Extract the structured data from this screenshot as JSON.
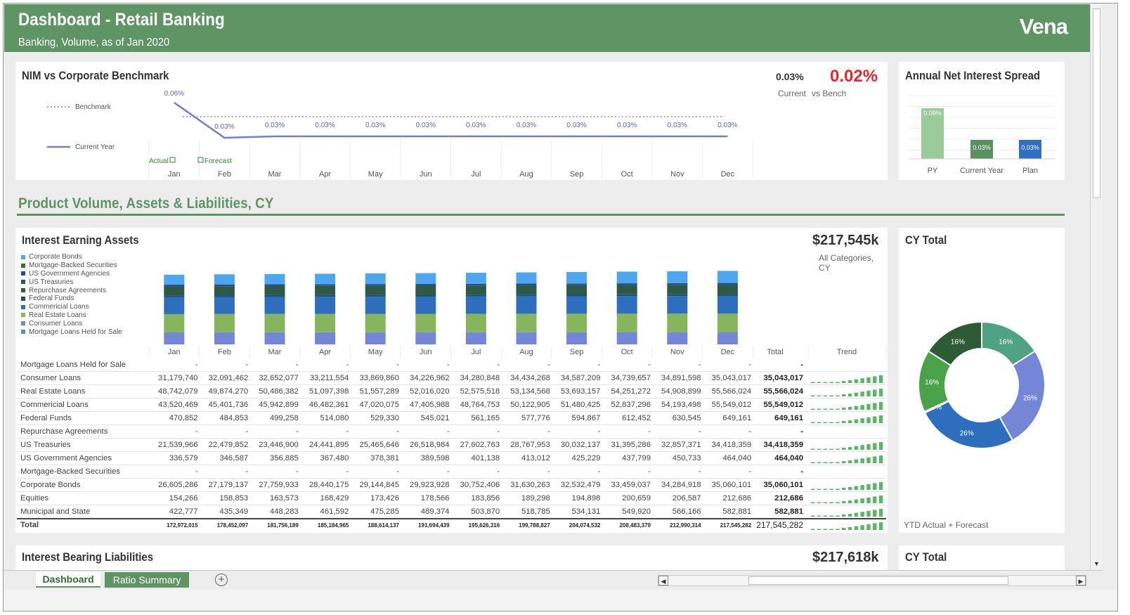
{
  "header": {
    "title": "Dashboard - Retail Banking",
    "subtitle": "Banking, Volume, as of Jan 2020",
    "logo": "Vena",
    "bg_color": "#5f9565"
  },
  "nim": {
    "title": "NIM vs Corporate Benchmark",
    "legend_benchmark": "Benchmark",
    "legend_current": "Current Year",
    "actual_label": "Actual",
    "forecast_label": "Forecast",
    "kpi_current": "0.03%",
    "kpi_vs_bench": "0.02%",
    "kpi_current_caption": "Current",
    "kpi_vs_bench_caption": "vs Bench"
  },
  "spread": {
    "title": "Annual Net Interest Spread"
  },
  "section_title": "Product Volume, Assets & Liabilities, CY",
  "assets": {
    "title": "Interest Earning Assets",
    "kpi_value": "$217,545k",
    "kpi_caption": "All Categories, CY",
    "total_header": "Total",
    "trend_header": "Trend",
    "rows": [
      {
        "label": "Mortgage Loans Held for Sale",
        "values": [
          "-",
          "-",
          "-",
          "-",
          "-",
          "-",
          "-",
          "-",
          "-",
          "-",
          "-",
          "-"
        ],
        "total": "-"
      },
      {
        "label": "Consumer Loans",
        "values": [
          "31,179,740",
          "32,091,462",
          "32,652,077",
          "33,211,554",
          "33,869,860",
          "34,226,962",
          "34,280,848",
          "34,434,268",
          "34,587,209",
          "34,739,657",
          "34,891,598",
          "35,043,017"
        ],
        "total": "35,043,017"
      },
      {
        "label": "Real Estate Loans",
        "values": [
          "48,742,079",
          "49,874,270",
          "50,486,382",
          "51,097,398",
          "51,557,289",
          "52,016,020",
          "52,575,518",
          "53,134,568",
          "53,693,157",
          "54,251,272",
          "54,908,899",
          "55,566,024"
        ],
        "total": "55,566,024"
      },
      {
        "label": "Commericial Loans",
        "values": [
          "43,520,469",
          "45,401,736",
          "45,942,899",
          "46,482,361",
          "47,020,075",
          "47,405,988",
          "48,764,753",
          "50,122,905",
          "51,480,425",
          "52,837,296",
          "54,193,498",
          "55,549,012"
        ],
        "total": "55,549,012"
      },
      {
        "label": "Federal Funds",
        "values": [
          "470,852",
          "484,853",
          "499,258",
          "514,080",
          "529,330",
          "545,021",
          "561,165",
          "577,776",
          "594,867",
          "612,452",
          "630,545",
          "649,161"
        ],
        "total": "649,161"
      },
      {
        "label": "Repurchase Agreements",
        "values": [
          "-",
          "-",
          "-",
          "-",
          "-",
          "-",
          "-",
          "-",
          "-",
          "-",
          "-",
          "-"
        ],
        "total": "-"
      },
      {
        "label": "US Treasuries",
        "values": [
          "21,539,966",
          "22,479,852",
          "23,446,900",
          "24,441,895",
          "25,465,646",
          "26,518,984",
          "27,602,763",
          "28,767,953",
          "30,032,137",
          "31,395,286",
          "32,857,371",
          "34,418,359"
        ],
        "total": "34,418,359"
      },
      {
        "label": "US Government Agencies",
        "values": [
          "336,579",
          "346,587",
          "356,885",
          "367,480",
          "378,381",
          "389,598",
          "401,138",
          "413,012",
          "425,229",
          "437,799",
          "450,733",
          "464,040"
        ],
        "total": "464,040"
      },
      {
        "label": "Mortgage-Backed Securities",
        "values": [
          "-",
          "-",
          "-",
          "-",
          "-",
          "-",
          "-",
          "-",
          "-",
          "-",
          "-",
          "-"
        ],
        "total": "-"
      },
      {
        "label": "Corporate Bonds",
        "values": [
          "26,605,286",
          "27,179,137",
          "27,759,933",
          "28,440,175",
          "29,144,845",
          "29,923,928",
          "30,752,406",
          "31,630,263",
          "32,532,479",
          "33,459,037",
          "34,284,918",
          "35,060,101"
        ],
        "total": "35,060,101"
      },
      {
        "label": "Equities",
        "values": [
          "154,266",
          "158,853",
          "163,573",
          "168,429",
          "173,426",
          "178,566",
          "183,856",
          "189,298",
          "194,898",
          "200,659",
          "206,587",
          "212,686"
        ],
        "total": "212,686"
      },
      {
        "label": "Municipal and State",
        "values": [
          "422,777",
          "435,349",
          "448,283",
          "461,592",
          "475,285",
          "489,374",
          "503,870",
          "518,785",
          "534,131",
          "549,920",
          "566,166",
          "582,881"
        ],
        "total": "582,881"
      }
    ],
    "total_row": {
      "label": "Total",
      "values": [
        "172,972,015",
        "178,452,097",
        "181,756,189",
        "185,184,965",
        "188,614,137",
        "191,694,439",
        "195,626,316",
        "199,788,827",
        "204,074,532",
        "208,483,379",
        "212,990,314",
        "217,545,282"
      ],
      "total": "217,545,282"
    }
  },
  "cy_total": {
    "title": "CY Total",
    "caption": "YTD Actual + Forecast"
  },
  "liabilities": {
    "title": "Interest Bearing Liabilities",
    "kpi_value": "$217,618k",
    "cy_title": "CY Total"
  },
  "tabs": {
    "active": "Dashboard",
    "second": "Ratio Summary"
  },
  "chart_data": [
    {
      "type": "line",
      "title": "NIM vs Corporate Benchmark",
      "categories": [
        "Jan",
        "Feb",
        "Mar",
        "Apr",
        "May",
        "Jun",
        "Jul",
        "Aug",
        "Sep",
        "Oct",
        "Nov",
        "Dec"
      ],
      "series": [
        {
          "name": "Current Year",
          "values": [
            0.06,
            0.03,
            0.03,
            0.03,
            0.03,
            0.03,
            0.03,
            0.03,
            0.03,
            0.03,
            0.03,
            0.03
          ],
          "labels": [
            "0.06%",
            "0.03%",
            "0.03%",
            "0.03%",
            "0.03%",
            "0.03%",
            "0.03%",
            "0.03%",
            "0.03%",
            "0.03%",
            "0.03%",
            "0.03%"
          ],
          "color": "#6f7fcc"
        },
        {
          "name": "Benchmark",
          "values": [
            0.05,
            0.05,
            0.05,
            0.05,
            0.05,
            0.05,
            0.05,
            0.05,
            0.05,
            0.05,
            0.05,
            0.05
          ],
          "color": "#aaaaaa"
        }
      ],
      "ylim": [
        0,
        0.07
      ]
    },
    {
      "type": "bar",
      "title": "Annual Net Interest Spread",
      "categories": [
        "PY",
        "Current Year",
        "Plan"
      ],
      "values": [
        0.09,
        0.03,
        0.03
      ],
      "labels": [
        "0.09%",
        "0.03%",
        "0.03%"
      ],
      "colors": [
        "#9ccb9b",
        "#5b8f5f",
        "#2f6fbf"
      ],
      "ylim": [
        0,
        0.11
      ]
    },
    {
      "type": "bar",
      "stacked": true,
      "title": "Interest Earning Assets",
      "categories": [
        "Jan",
        "Feb",
        "Mar",
        "Apr",
        "May",
        "Jun",
        "Jul",
        "Aug",
        "Sep",
        "Oct",
        "Nov",
        "Dec"
      ],
      "series": [
        {
          "name": "Corporate Bonds",
          "color": "#4da6ee",
          "values": [
            26.61,
            27.18,
            27.76,
            28.44,
            29.14,
            29.92,
            30.75,
            31.63,
            32.53,
            33.46,
            34.28,
            35.06
          ]
        },
        {
          "name": "Mortgage-Backed Securities",
          "color": "#3d6b2f",
          "values": [
            0,
            0,
            0,
            0,
            0,
            0,
            0,
            0,
            0,
            0,
            0,
            0
          ]
        },
        {
          "name": "US Government Agencies",
          "color": "#254e8e",
          "values": [
            0.34,
            0.35,
            0.36,
            0.37,
            0.38,
            0.39,
            0.4,
            0.41,
            0.43,
            0.44,
            0.45,
            0.46
          ]
        },
        {
          "name": "US Treasuries",
          "color": "#2e5a45",
          "values": [
            21.54,
            22.48,
            23.45,
            24.44,
            25.47,
            26.52,
            27.6,
            28.77,
            30.03,
            31.4,
            32.86,
            34.42
          ]
        },
        {
          "name": "Repurchase Agreements",
          "color": "#2b5d3a",
          "values": [
            0,
            0,
            0,
            0,
            0,
            0,
            0,
            0,
            0,
            0,
            0,
            0
          ]
        },
        {
          "name": "Federal Funds",
          "color": "#1f4e79",
          "values": [
            0.47,
            0.48,
            0.5,
            0.51,
            0.53,
            0.55,
            0.56,
            0.58,
            0.59,
            0.61,
            0.63,
            0.65
          ]
        },
        {
          "name": "Commericial Loans",
          "color": "#2e6fbd",
          "values": [
            43.52,
            45.4,
            45.94,
            46.48,
            47.02,
            47.41,
            48.76,
            50.12,
            51.48,
            52.84,
            54.19,
            55.55
          ]
        },
        {
          "name": "Real Estate Loans",
          "color": "#86b55e",
          "values": [
            48.74,
            49.87,
            50.49,
            51.1,
            51.56,
            52.02,
            52.58,
            53.13,
            53.69,
            54.25,
            54.91,
            55.57
          ]
        },
        {
          "name": "Consumer Loans",
          "color": "#7586d6",
          "values": [
            31.18,
            32.09,
            32.65,
            33.21,
            33.87,
            34.23,
            34.28,
            34.43,
            34.59,
            34.74,
            34.89,
            35.04
          ]
        },
        {
          "name": "Mortgage Loans Held for Sale",
          "color": "#4fa383",
          "values": [
            0,
            0,
            0,
            0,
            0,
            0,
            0,
            0,
            0,
            0,
            0,
            0
          ]
        }
      ],
      "ylabel": "",
      "units": "millions"
    },
    {
      "type": "pie",
      "title": "CY Total",
      "donut": true,
      "slices": [
        {
          "label": "16%",
          "value": 16,
          "color": "#4fa383"
        },
        {
          "label": "26%",
          "value": 26,
          "color": "#7586d6"
        },
        {
          "label": "26%",
          "value": 26,
          "color": "#2e6fbd"
        },
        {
          "label": "0%",
          "value": 0.3,
          "color": "#1f4e79"
        },
        {
          "label": "16%",
          "value": 16,
          "color": "#4aa34a"
        },
        {
          "label": "16%",
          "value": 16,
          "color": "#2e5a36"
        }
      ]
    }
  ]
}
